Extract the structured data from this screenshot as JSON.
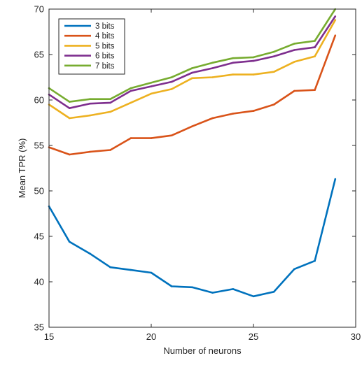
{
  "chart_data": {
    "type": "line",
    "title": "",
    "xlabel": "Number of neurons",
    "ylabel": "Mean TPR (%)",
    "xlim": [
      15,
      30
    ],
    "ylim": [
      35,
      70
    ],
    "xticks": [
      15,
      20,
      25,
      30
    ],
    "yticks": [
      35,
      40,
      45,
      50,
      55,
      60,
      65,
      70
    ],
    "grid": false,
    "legend_position": "top-left",
    "x": [
      15,
      16,
      17,
      18,
      19,
      20,
      21,
      22,
      23,
      24,
      25,
      26,
      27,
      28,
      29
    ],
    "series": [
      {
        "name": "3 bits",
        "color": "#0072BD",
        "values": [
          48.3,
          44.4,
          43.1,
          41.6,
          41.3,
          41.0,
          39.5,
          39.4,
          38.8,
          39.2,
          38.4,
          38.9,
          41.4,
          42.3,
          51.3
        ]
      },
      {
        "name": "4 bits",
        "color": "#D95319",
        "values": [
          54.8,
          54.0,
          54.3,
          54.5,
          55.8,
          55.8,
          56.1,
          57.1,
          58.0,
          58.5,
          58.8,
          59.5,
          61.0,
          61.1,
          67.1
        ]
      },
      {
        "name": "5 bits",
        "color": "#EDB120",
        "values": [
          59.5,
          58.0,
          58.3,
          58.7,
          59.7,
          60.7,
          61.2,
          62.4,
          62.5,
          62.8,
          62.8,
          63.1,
          64.2,
          64.8,
          68.8
        ]
      },
      {
        "name": "6 bits",
        "color": "#7E2F8E",
        "values": [
          60.6,
          59.1,
          59.6,
          59.7,
          61.0,
          61.5,
          62.0,
          63.0,
          63.5,
          64.1,
          64.3,
          64.8,
          65.5,
          65.8,
          69.2
        ]
      },
      {
        "name": "7 bits",
        "color": "#77AC30",
        "values": [
          61.3,
          59.8,
          60.1,
          60.1,
          61.3,
          61.9,
          62.5,
          63.5,
          64.1,
          64.6,
          64.7,
          65.3,
          66.2,
          66.5,
          70.0
        ]
      }
    ]
  }
}
